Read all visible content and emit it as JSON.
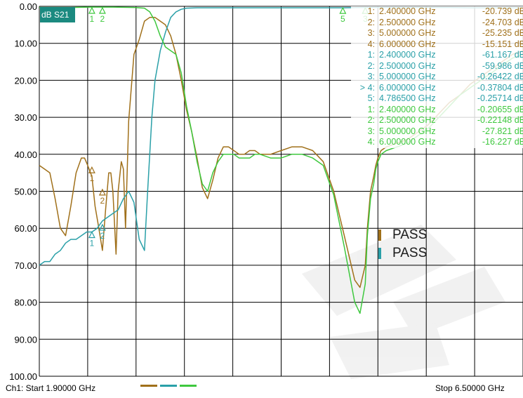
{
  "chart_data": {
    "type": "line",
    "title": "dB S21",
    "y_ticks": [
      "0.00",
      "10.00",
      "20.00",
      "30.00",
      "40.00",
      "50.00",
      "60.00",
      "70.00",
      "80.00",
      "90.00",
      "100.00"
    ],
    "y_range": [
      0,
      100
    ],
    "y_axis_inverted": true,
    "x_range_ghz": [
      1.9,
      6.5
    ],
    "x_divisions": 10,
    "grid": true,
    "series": [
      {
        "color": "#a0701a",
        "x": [
          1.9,
          1.95,
          2.0,
          2.05,
          2.1,
          2.15,
          2.2,
          2.25,
          2.3,
          2.33,
          2.36,
          2.4,
          2.43,
          2.46,
          2.5,
          2.53,
          2.56,
          2.58,
          2.6,
          2.63,
          2.65,
          2.68,
          2.7,
          2.72,
          2.75,
          2.8,
          2.85,
          2.9,
          2.95,
          3.0,
          3.05,
          3.1,
          3.15,
          3.2,
          3.25,
          3.3,
          3.35,
          3.4,
          3.45,
          3.5,
          3.55,
          3.6,
          3.65,
          3.7,
          3.75,
          3.8,
          3.85,
          3.9,
          3.95,
          4.0,
          4.1,
          4.2,
          4.3,
          4.4,
          4.5,
          4.6,
          4.7,
          4.8,
          4.9,
          4.95,
          5.0,
          5.02,
          5.05,
          5.08,
          5.1,
          5.12,
          5.15,
          5.2,
          5.3,
          5.4,
          5.5,
          5.6,
          5.7,
          5.8,
          5.9,
          6.0,
          6.1,
          6.2,
          6.3,
          6.4,
          6.5
        ],
        "y": [
          43,
          44,
          45,
          52,
          60,
          62,
          54,
          45,
          41,
          41,
          43,
          46,
          54,
          59,
          66,
          55,
          45,
          45,
          50,
          67,
          50,
          42,
          44,
          60,
          31,
          13,
          9,
          4,
          3,
          3,
          4,
          5,
          8,
          13,
          20,
          28,
          34,
          41,
          49,
          52,
          47,
          41,
          38,
          38,
          39,
          40,
          40,
          39,
          39,
          40,
          40,
          39,
          38,
          38,
          39,
          42,
          50,
          62,
          74,
          76,
          70,
          60,
          50,
          46,
          43,
          41,
          39,
          38,
          37,
          36,
          34,
          32,
          29,
          26,
          24,
          21,
          19,
          17,
          15,
          13,
          12
        ]
      },
      {
        "color": "#2aa0a8",
        "x": [
          1.9,
          1.95,
          2.0,
          2.05,
          2.1,
          2.15,
          2.2,
          2.25,
          2.3,
          2.35,
          2.4,
          2.45,
          2.5,
          2.55,
          2.6,
          2.65,
          2.7,
          2.75,
          2.8,
          2.85,
          2.9,
          2.93,
          2.95,
          2.97,
          3.0,
          3.05,
          3.1,
          3.15,
          3.2,
          3.25,
          3.3,
          3.4,
          3.5,
          3.6,
          3.7,
          3.8,
          3.9,
          4.0,
          4.2,
          4.4,
          4.6,
          4.8,
          5.0,
          5.2,
          5.4,
          5.6,
          5.8,
          6.0,
          6.2,
          6.4,
          6.5
        ],
        "y": [
          70,
          69,
          69,
          67,
          66,
          64,
          63,
          63,
          62,
          61,
          61,
          60,
          58,
          57,
          56,
          55,
          52,
          50,
          53,
          63,
          66,
          50,
          40,
          30,
          20,
          12,
          7,
          3,
          1.5,
          0.8,
          0.5,
          0.4,
          0.4,
          0.4,
          0.4,
          0.4,
          0.4,
          0.4,
          0.4,
          0.4,
          0.4,
          0.4,
          0.3,
          0.3,
          0.3,
          0.3,
          0.3,
          0.4,
          0.4,
          0.4,
          0.4
        ]
      },
      {
        "color": "#3ec83e",
        "x": [
          1.9,
          2.0,
          2.1,
          2.2,
          2.4,
          2.6,
          2.8,
          2.9,
          2.95,
          3.0,
          3.05,
          3.1,
          3.15,
          3.2,
          3.25,
          3.3,
          3.35,
          3.4,
          3.45,
          3.5,
          3.55,
          3.6,
          3.65,
          3.7,
          3.75,
          3.8,
          3.85,
          3.9,
          3.95,
          4.0,
          4.1,
          4.2,
          4.3,
          4.4,
          4.5,
          4.6,
          4.7,
          4.8,
          4.9,
          4.95,
          5.0,
          5.02,
          5.05,
          5.08,
          5.1,
          5.12,
          5.15,
          5.2,
          5.3,
          5.4,
          5.5,
          5.6,
          5.7,
          5.8,
          5.9,
          6.0,
          6.1,
          6.2,
          6.3,
          6.4,
          6.5
        ],
        "y": [
          0.3,
          0.3,
          0.3,
          0.3,
          0.2,
          0.2,
          0.3,
          0.5,
          1.5,
          4,
          8,
          11,
          12,
          13,
          18,
          27,
          34,
          42,
          48,
          50,
          45,
          42,
          40,
          40,
          40,
          41,
          41,
          41,
          40,
          40,
          41,
          41,
          40,
          40,
          41,
          43,
          51,
          65,
          80,
          83,
          75,
          62,
          52,
          48,
          44,
          42,
          40,
          39,
          38,
          37,
          35,
          33,
          30,
          27,
          24,
          22,
          20,
          18,
          16,
          14,
          13
        ]
      }
    ],
    "marker_groups": [
      {
        "color": "#a0701a",
        "tags": [
          "1",
          "2"
        ],
        "tag_positions": [
          {
            "x": 2.4,
            "y": 43.5
          },
          {
            "x": 2.5,
            "y": 49.5
          }
        ]
      },
      {
        "color": "#2aa0a8",
        "tags": [
          "1",
          "2"
        ],
        "tag_positions": [
          {
            "x": 2.4,
            "y": 61
          },
          {
            "x": 2.5,
            "y": 59
          }
        ]
      },
      {
        "color": "#3ec83e",
        "tags": [
          "1",
          "2",
          "5",
          "3"
        ],
        "tag_positions": [
          {
            "x": 2.4,
            "y": 0.3
          },
          {
            "x": 2.5,
            "y": 0.3
          },
          {
            "x": 4.7865,
            "y": 0.4
          },
          {
            "x": 5.0,
            "y": 0.4
          }
        ]
      }
    ],
    "marker_table": [
      {
        "label": "1:",
        "freq": "2.400000 GHz",
        "value": "-20.739 dB",
        "color": "#a0701a"
      },
      {
        "label": "2:",
        "freq": "2.500000 GHz",
        "value": "-24.703 dB",
        "color": "#a0701a"
      },
      {
        "label": "3:",
        "freq": "5.000000 GHz",
        "value": "-25.235 dB",
        "color": "#a0701a"
      },
      {
        "label": "4:",
        "freq": "6.000000 GHz",
        "value": "-15.151 dB",
        "color": "#a0701a"
      },
      {
        "label": "1:",
        "freq": "2.400000 GHz",
        "value": "-61.167 dB",
        "color": "#2aa0a8"
      },
      {
        "label": "2:",
        "freq": "2.500000 GHz",
        "value": "-59.986 dB",
        "color": "#2aa0a8"
      },
      {
        "label": "3:",
        "freq": "5.000000 GHz",
        "value": "-0.26422 dB",
        "color": "#2aa0a8"
      },
      {
        "label": "> 4:",
        "freq": "6.000000 GHz",
        "value": "-0.37804 dB",
        "color": "#2aa0a8"
      },
      {
        "label": "5:",
        "freq": "4.786500 GHz",
        "value": "-0.25714 dB",
        "color": "#2aa0a8"
      },
      {
        "label": "1:",
        "freq": "2.400000 GHz",
        "value": "-0.20655 dB",
        "color": "#3ec83e"
      },
      {
        "label": "2:",
        "freq": "2.500000 GHz",
        "value": "-0.22148 dB",
        "color": "#3ec83e"
      },
      {
        "label": "3:",
        "freq": "5.000000 GHz",
        "value": "-27.821 dB",
        "color": "#3ec83e"
      },
      {
        "label": "4:",
        "freq": "6.000000 GHz",
        "value": "-16.227 dB",
        "color": "#3ec83e"
      }
    ],
    "pass_indicators": [
      {
        "text": "PASS",
        "color": "#a0701a"
      },
      {
        "text": "PASS",
        "color": "#2aa0a8"
      }
    ]
  },
  "footer": {
    "start": "Ch1: Start  1.90000 GHz",
    "stop": "Stop  6.50000 GHz"
  },
  "colors": {
    "trace1": "#a0701a",
    "trace2": "#2aa0a8",
    "trace3": "#3ec83e",
    "badge_bg": "#1b8a80",
    "grid": "#000000"
  }
}
